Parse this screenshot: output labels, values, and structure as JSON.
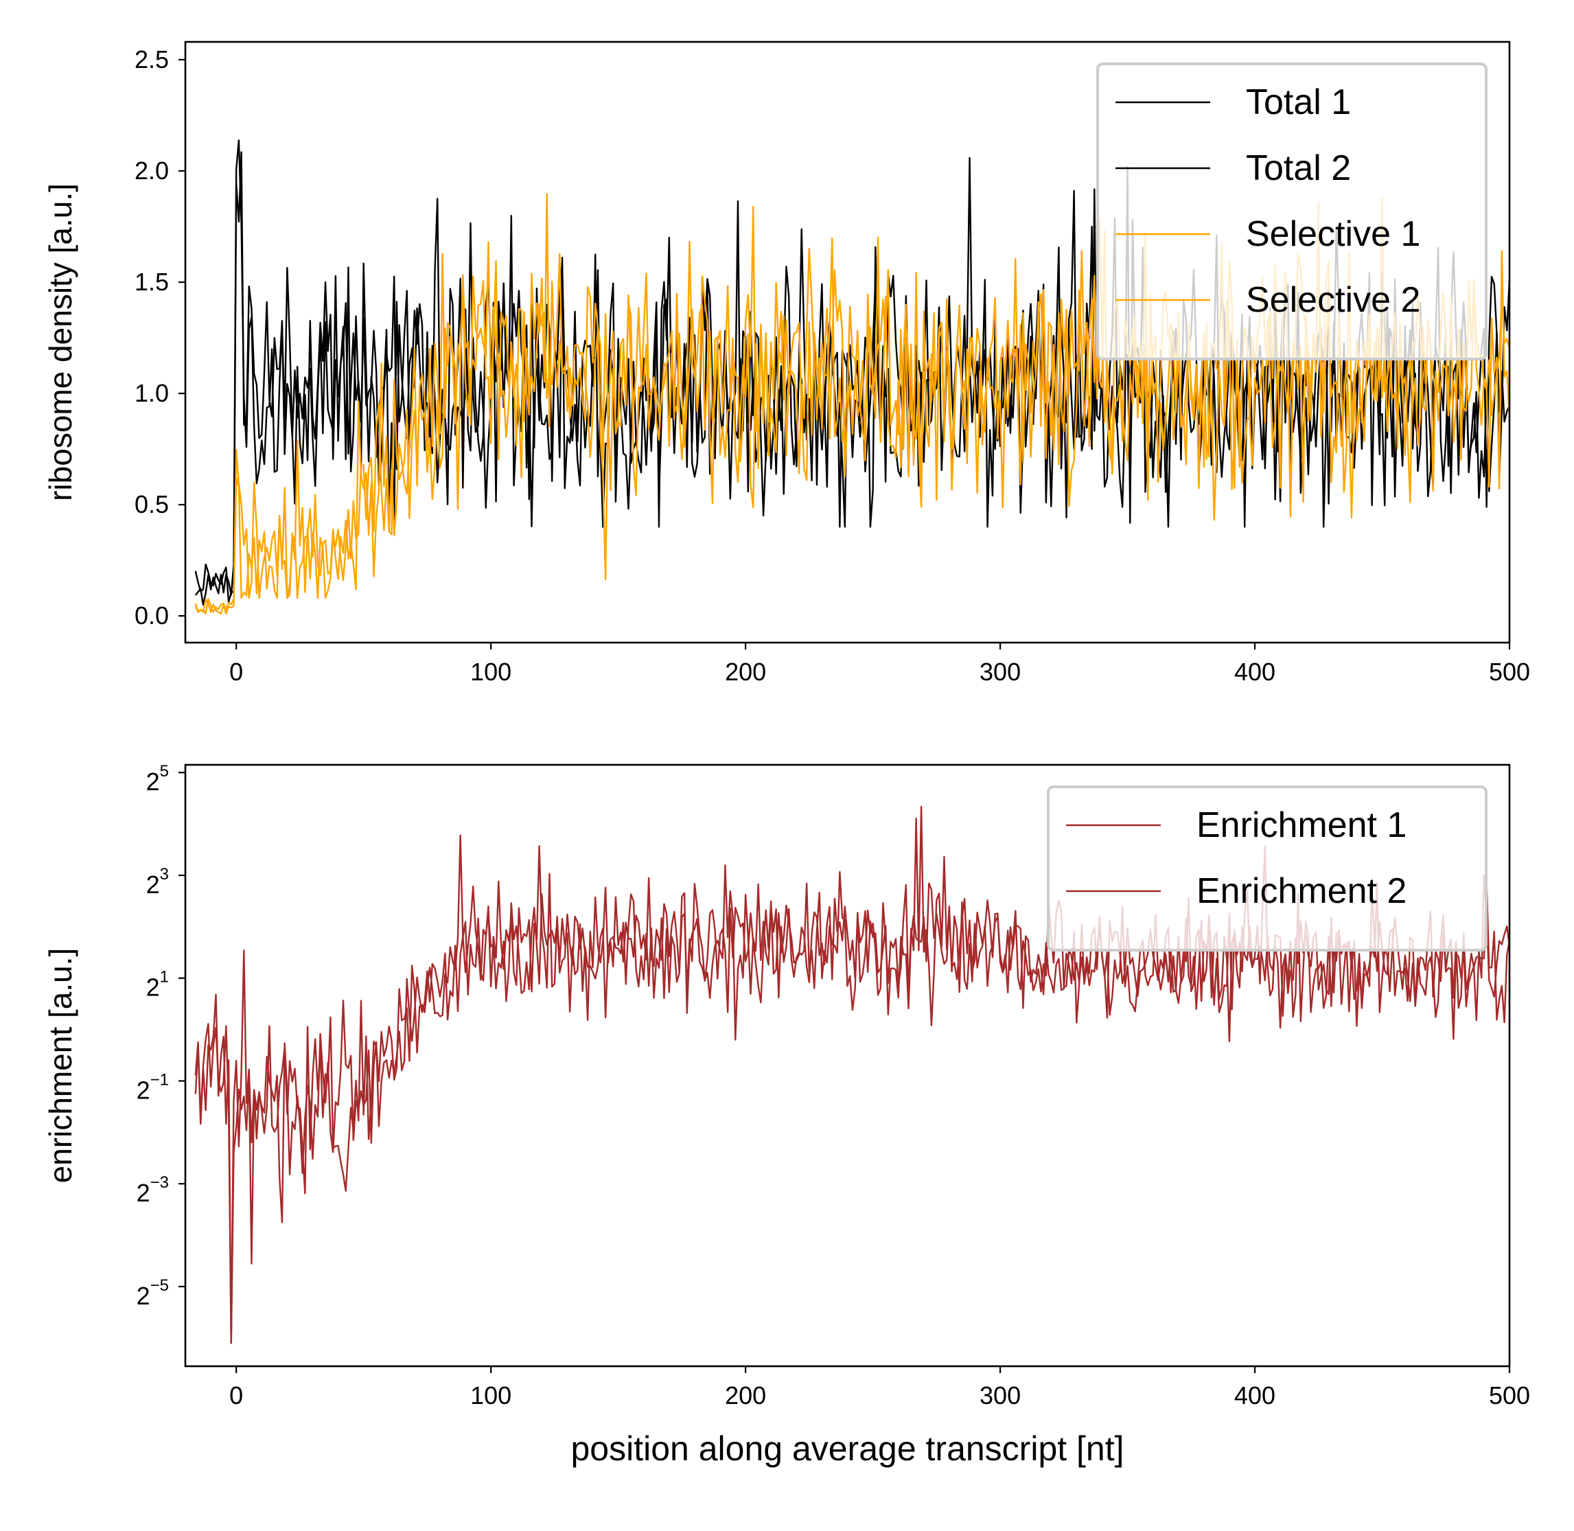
{
  "chart_data": [
    {
      "type": "line",
      "title": "",
      "xlabel": "",
      "ylabel": "ribosome density [a.u.]",
      "xlim": [
        -20,
        500
      ],
      "ylim": [
        -0.12,
        2.58
      ],
      "xticks": [
        0,
        100,
        200,
        300,
        400,
        500
      ],
      "xtick_labels": [
        "0",
        "100",
        "200",
        "300",
        "400",
        "500"
      ],
      "yticks": [
        0.0,
        0.5,
        1.0,
        1.5,
        2.0,
        2.5
      ],
      "ytick_labels": [
        "0.0",
        "0.5",
        "1.0",
        "1.5",
        "2.0",
        "2.5"
      ],
      "grid": false,
      "legend_position": "top-right",
      "x": {
        "start": -16,
        "end": 500,
        "step": 1
      },
      "series": [
        {
          "name": "Total 1",
          "color": "#000000",
          "profile": "total",
          "seed": 11
        },
        {
          "name": "Total 2",
          "color": "#000000",
          "profile": "total",
          "seed": 29
        },
        {
          "name": "Selective 1",
          "color": "#FFA500",
          "profile": "selective",
          "seed": 47
        },
        {
          "name": "Selective 2",
          "color": "#FFA500",
          "profile": "selective",
          "seed": 83
        }
      ]
    },
    {
      "type": "line",
      "title": "",
      "xlabel": "position along average transcript [nt]",
      "ylabel": "enrichment [a.u.]",
      "xlim": [
        -20,
        500
      ],
      "ylim_log2": [
        -6.55,
        5.15
      ],
      "y_scale": "log2",
      "xticks": [
        0,
        100,
        200,
        300,
        400,
        500
      ],
      "xtick_labels": [
        "0",
        "100",
        "200",
        "300",
        "400",
        "500"
      ],
      "yticks_log2": [
        5,
        3,
        1,
        -1,
        -3,
        -5
      ],
      "ytick_base": "2",
      "ytick_exponents": [
        "5",
        "3",
        "1",
        "−1",
        "−3",
        "−5"
      ],
      "grid": false,
      "legend_position": "top-right",
      "x": {
        "start": -16,
        "end": 500,
        "step": 1
      },
      "series": [
        {
          "name": "Enrichment 1",
          "color": "#A52A2A",
          "profile": "enrichment",
          "seed": 5
        },
        {
          "name": "Enrichment 2",
          "color": "#A52A2A",
          "profile": "enrichment",
          "seed": 61
        }
      ]
    }
  ]
}
